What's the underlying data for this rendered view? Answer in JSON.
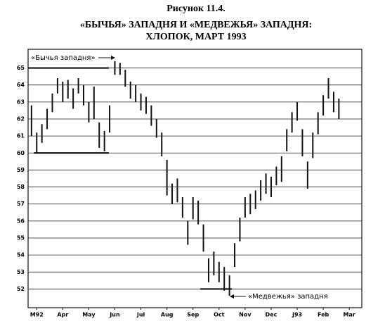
{
  "chart_data": {
    "type": "hilo",
    "figure_label": "Рисунок 11.4.",
    "title": "«БЫЧЬЯ» ЗАПАДНЯ И «МЕДВЕЖЬЯ» ЗАПАДНЯ:",
    "subtitle": "ХЛОПОК, МАРТ 1993",
    "color": "#111111",
    "grid": true,
    "xlim": [
      0.17,
      12.98
    ],
    "xticks": [
      {
        "value": 0.5,
        "label": "M92"
      },
      {
        "value": 1.5,
        "label": "Apr"
      },
      {
        "value": 2.5,
        "label": "May"
      },
      {
        "value": 3.5,
        "label": "Jun"
      },
      {
        "value": 4.5,
        "label": "Jul"
      },
      {
        "value": 5.5,
        "label": "Aug"
      },
      {
        "value": 6.5,
        "label": "Sep"
      },
      {
        "value": 7.5,
        "label": "Oct"
      },
      {
        "value": 8.5,
        "label": "Nov"
      },
      {
        "value": 9.5,
        "label": "Dec"
      },
      {
        "value": 10.5,
        "label": "J93"
      },
      {
        "value": 11.5,
        "label": "Feb"
      },
      {
        "value": 12.5,
        "label": "Mar"
      }
    ],
    "ylim": [
      50.9,
      66.1
    ],
    "yticks": [
      65,
      64,
      63,
      62,
      61,
      60,
      59,
      58,
      57,
      56,
      55,
      54,
      53,
      52
    ],
    "x": [
      0.3,
      0.5,
      0.7,
      0.9,
      1.1,
      1.3,
      1.5,
      1.7,
      1.9,
      2.1,
      2.3,
      2.5,
      2.7,
      2.9,
      3.1,
      3.3,
      3.5,
      3.7,
      3.9,
      4.1,
      4.3,
      4.5,
      4.7,
      4.9,
      5.1,
      5.3,
      5.5,
      5.7,
      5.9,
      6.1,
      6.3,
      6.5,
      6.7,
      6.9,
      7.1,
      7.3,
      7.5,
      7.7,
      7.9,
      8.1,
      8.3,
      8.5,
      8.7,
      8.9,
      9.1,
      9.3,
      9.5,
      9.7,
      9.9,
      10.1,
      10.3,
      10.5,
      10.7,
      10.9,
      11.1,
      11.3,
      11.5,
      11.7,
      11.9,
      12.1
    ],
    "high": [
      62.8,
      61.2,
      61.7,
      62.6,
      63.5,
      64.4,
      64.2,
      64.3,
      63.8,
      64.4,
      64.0,
      63.0,
      63.9,
      61.8,
      61.3,
      62.8,
      65.4,
      65.3,
      64.9,
      64.2,
      64.0,
      63.5,
      63.3,
      62.8,
      62.0,
      61.2,
      59.6,
      58.2,
      58.5,
      57.4,
      56.0,
      57.4,
      57.2,
      55.8,
      53.8,
      54.2,
      53.6,
      53.3,
      52.8,
      54.7,
      56.2,
      57.4,
      57.6,
      57.8,
      58.4,
      58.8,
      58.6,
      59.2,
      59.8,
      61.4,
      62.4,
      63.0,
      61.4,
      59.5,
      61.2,
      62.4,
      63.4,
      64.4,
      63.6,
      63.2
    ],
    "low": [
      61.0,
      60.0,
      60.6,
      61.4,
      62.4,
      63.5,
      63.0,
      63.2,
      62.6,
      63.5,
      62.8,
      61.8,
      62.0,
      60.3,
      60.1,
      61.2,
      64.6,
      64.6,
      63.9,
      63.2,
      63.0,
      62.5,
      62.3,
      61.6,
      60.9,
      59.8,
      57.5,
      57.0,
      57.1,
      56.2,
      54.6,
      56.1,
      55.8,
      54.2,
      52.4,
      52.8,
      52.4,
      51.9,
      51.6,
      53.3,
      54.8,
      56.2,
      56.4,
      56.7,
      57.2,
      57.6,
      57.4,
      58.1,
      58.3,
      60.1,
      61.2,
      61.9,
      59.8,
      57.9,
      59.7,
      61.1,
      62.2,
      63.2,
      62.4,
      62.0
    ],
    "reference_lines": [
      {
        "value": 65,
        "x": [
          0.17,
          3.27
        ]
      },
      {
        "value": 60,
        "x": [
          0.39,
          3.27
        ]
      },
      {
        "value": 52,
        "x": [
          6.78,
          7.99
        ]
      }
    ],
    "annotations": [
      {
        "text": "«Бычья западня»"
      },
      {
        "text": "«Медвежья» западня"
      }
    ]
  }
}
